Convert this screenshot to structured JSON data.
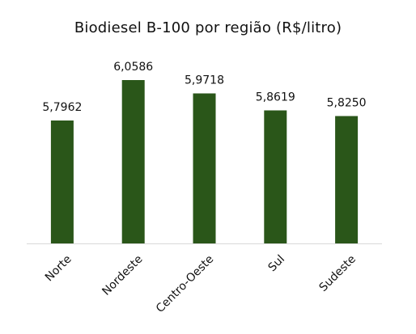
{
  "chart_data": {
    "type": "bar",
    "title": "Biodiesel B-100 por região (R$/litro)",
    "categories": [
      "Norte",
      "Nordeste",
      "Centro-Oeste",
      "Sul",
      "Sudeste"
    ],
    "values": [
      5.7962,
      6.0586,
      5.9718,
      5.8619,
      5.825
    ],
    "data_labels": [
      "5,7962",
      "6,0586",
      "5,9718",
      "5,8619",
      "5,8250"
    ],
    "xlabel": "",
    "ylabel": "",
    "grid": false,
    "legend": "none",
    "bar_color": "#2a5619",
    "tick_label_rotation": -45
  }
}
